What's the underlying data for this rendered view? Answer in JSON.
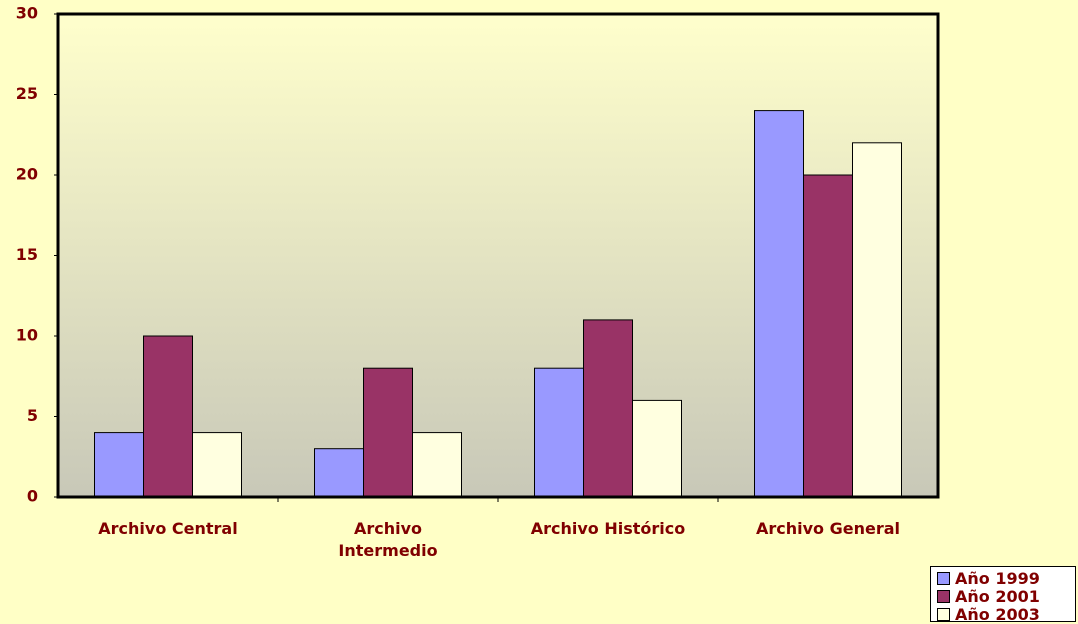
{
  "chart_data": {
    "type": "bar",
    "categories": [
      "Archivo Central",
      "Archivo Intermedio",
      "Archivo Histórico",
      "Archivo General"
    ],
    "series": [
      {
        "name": "Año 1999",
        "color": "#9999ff",
        "values": [
          4,
          3,
          8,
          24
        ]
      },
      {
        "name": "Año 2001",
        "color": "#993366",
        "values": [
          10,
          8,
          11,
          20
        ]
      },
      {
        "name": "Año 2003",
        "color": "#ffffe0",
        "values": [
          4,
          4,
          6,
          22
        ]
      }
    ],
    "ylim": [
      0,
      30
    ],
    "yticks": [
      0,
      5,
      10,
      15,
      20,
      25,
      30
    ],
    "grid": false,
    "legend": "bottom-right"
  }
}
